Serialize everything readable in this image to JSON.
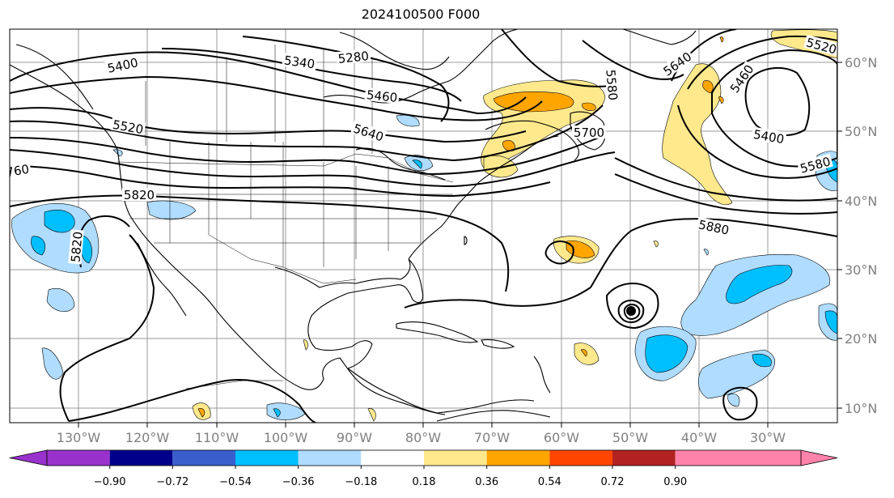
{
  "title": "2024100500 F000",
  "map": {
    "lon_labels": [
      "130°W",
      "120°W",
      "110°W",
      "100°W",
      "90°W",
      "80°W",
      "70°W",
      "60°W",
      "50°W",
      "40°W",
      "30°W"
    ],
    "lat_labels": [
      "60°N",
      "50°N",
      "40°N",
      "30°N",
      "20°N",
      "10°N"
    ],
    "contour_labels": [
      "5400",
      "5340",
      "5280",
      "5460",
      "5640",
      "5520",
      "5580",
      "5640",
      "5460",
      "5400",
      "5520",
      "5700",
      "5580",
      "760",
      "5820",
      "5820",
      "5880"
    ]
  },
  "colorbar": {
    "ticks": [
      "−0.90",
      "−0.72",
      "−0.54",
      "−0.36",
      "−0.18",
      "0.18",
      "0.36",
      "0.54",
      "0.72",
      "0.90"
    ],
    "colors": [
      "#9932cc",
      "#00008b",
      "#3a5fcd",
      "#00bfff",
      "#afdcff",
      "#ffffff",
      "#ffe98c",
      "#ffa500",
      "#ff4500",
      "#b22222",
      "#ff82ab"
    ],
    "left_extend_color": "#9932cc",
    "right_extend_color": "#ff82ab"
  }
}
